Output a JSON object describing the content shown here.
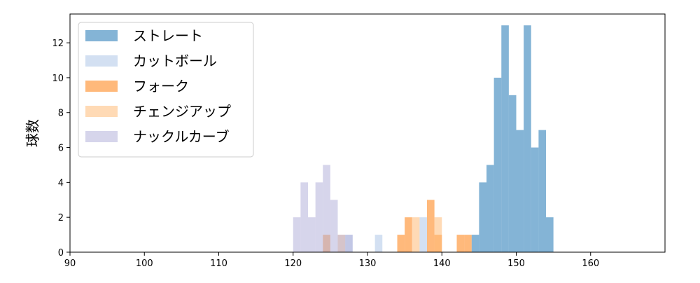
{
  "chart_data": {
    "type": "histogram",
    "ylabel": "球数",
    "xlim": [
      90,
      170
    ],
    "ylim": [
      0,
      13.65
    ],
    "xticks": [
      90,
      100,
      110,
      120,
      130,
      140,
      150,
      160
    ],
    "yticks": [
      0,
      2,
      4,
      6,
      8,
      10,
      12
    ],
    "legend": "upper left",
    "alpha": 0.55,
    "series": [
      {
        "name": "ストレート",
        "color": "#1f77b4",
        "bins": [
          144,
          145,
          146,
          147,
          148,
          149,
          150,
          151,
          152,
          153,
          154,
          155
        ],
        "values": [
          1,
          4,
          5,
          10,
          13,
          9,
          7,
          13,
          6,
          7,
          2
        ]
      },
      {
        "name": "カットボール",
        "color": "#aec7e8",
        "bins": [
          127,
          128,
          129,
          130,
          131,
          132,
          133,
          134,
          135,
          136,
          137,
          138
        ],
        "values": [
          1,
          0,
          0,
          0,
          1,
          0,
          0,
          0,
          0,
          0,
          2
        ]
      },
      {
        "name": "フォーク",
        "color": "#ff7f0e",
        "bins": [
          124,
          125,
          126,
          127,
          128,
          129,
          130,
          131,
          132,
          133,
          134,
          135,
          136,
          137,
          138,
          139,
          140,
          141,
          142,
          143,
          144
        ],
        "values": [
          1,
          0,
          0,
          0,
          0,
          0,
          0,
          0,
          0,
          0,
          1,
          2,
          0,
          0,
          3,
          1,
          0,
          0,
          1,
          1
        ]
      },
      {
        "name": "チェンジアップ",
        "color": "#ffbb78",
        "bins": [
          126,
          127,
          128,
          129,
          130,
          131,
          132,
          133,
          134,
          135,
          136,
          137,
          138,
          139,
          140
        ],
        "values": [
          1,
          0,
          0,
          0,
          0,
          0,
          0,
          0,
          0,
          0,
          2,
          0,
          0,
          2
        ]
      },
      {
        "name": "ナックルカーブ",
        "color": "#b5b3da",
        "bins": [
          120,
          121,
          122,
          123,
          124,
          125,
          126,
          127,
          128
        ],
        "values": [
          2,
          4,
          2,
          4,
          5,
          3,
          1,
          1
        ]
      }
    ]
  }
}
